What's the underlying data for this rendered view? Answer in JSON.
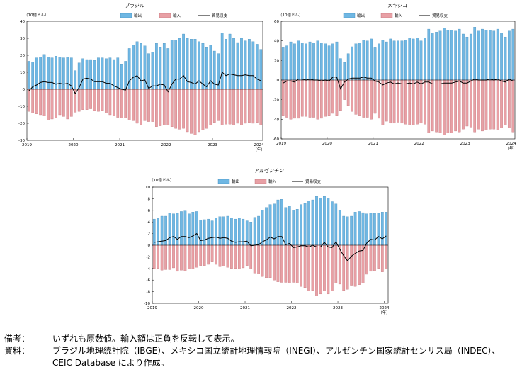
{
  "chart_data": [
    {
      "type": "bar",
      "title": "ブラジル",
      "ylabel": "（10億ドル）",
      "unit_year": "（年）",
      "ylim": [
        -30,
        40
      ],
      "yticks": [
        -30,
        -20,
        -10,
        0,
        10,
        20,
        30,
        40
      ],
      "xticks": [
        "2019",
        "2020",
        "2021",
        "2022",
        "2023",
        "2024"
      ],
      "legend": [
        "輸出",
        "輸入",
        "貿易収支"
      ],
      "series": [
        {
          "name": "輸出",
          "values": [
            16.5,
            16,
            18.5,
            19,
            20.5,
            19,
            18.5,
            19.5,
            19,
            18.5,
            19,
            18.5,
            11,
            15.5,
            18,
            17.5,
            17.5,
            17,
            18.5,
            18.5,
            18,
            18.5,
            17.5,
            18.5,
            14.5,
            16.5,
            24,
            26,
            28,
            27,
            25.5,
            21,
            22,
            27,
            24.5,
            27,
            24,
            29,
            29,
            30,
            32.5,
            30,
            29.5,
            29.5,
            28,
            27,
            24.5,
            26,
            22.5,
            21,
            33,
            29.5,
            32.5,
            30,
            27.5,
            30,
            28.5,
            29.5,
            28,
            26.5,
            23.5
          ]
        },
        {
          "name": "輸入",
          "values": [
            -13,
            -14,
            -14.5,
            -15,
            -15.5,
            -18,
            -17.5,
            -17,
            -15,
            -16,
            -17.5,
            -16,
            -13.5,
            -13,
            -12,
            -12,
            -11.5,
            -12.5,
            -13,
            -12.5,
            -14,
            -15,
            -15.5,
            -16.5,
            -17,
            -17,
            -18,
            -18.5,
            -20,
            -21,
            -18.5,
            -19,
            -19,
            -22,
            -21.5,
            -21,
            -21,
            -22,
            -23,
            -23.5,
            -23,
            -25,
            -26,
            -27,
            -25,
            -24,
            -23,
            -21,
            -19.5,
            -18.5,
            -21,
            -20.5,
            -20.5,
            -21,
            -20,
            -21,
            -20,
            -19.5,
            -20,
            -19.5,
            -21
          ]
        },
        {
          "name": "貿易収支",
          "values": [
            -1,
            1.5,
            2.5,
            4,
            4.5,
            4,
            4,
            3,
            3.5,
            3,
            3.5,
            2,
            -2.5,
            1,
            6,
            6.5,
            6,
            4.5,
            4.5,
            4.5,
            3.5,
            3.5,
            2,
            1,
            0,
            -0.5,
            5,
            7,
            8,
            5,
            5.5,
            0.5,
            2,
            2,
            3,
            2.5,
            -1.5,
            3,
            6,
            6,
            8,
            4.5,
            4,
            3,
            5,
            3,
            1.5,
            5,
            3,
            2.5,
            10,
            8,
            9,
            8.5,
            8,
            8,
            8.5,
            8,
            8,
            6,
            5
          ]
        }
      ]
    },
    {
      "type": "bar",
      "title": "メキシコ",
      "ylabel": "（10億ドル）",
      "unit_year": "（年）",
      "ylim": [
        -60,
        60
      ],
      "yticks": [
        -60,
        -40,
        -20,
        0,
        20,
        40,
        60
      ],
      "xticks": [
        "2019",
        "2020",
        "2021",
        "2022",
        "2023",
        "2024"
      ],
      "legend": [
        "輸出",
        "輸入",
        "貿易収支"
      ],
      "series": [
        {
          "name": "輸出",
          "values": [
            33,
            35,
            39,
            37,
            40,
            38,
            37,
            39,
            38,
            40,
            38,
            37,
            35,
            37,
            39,
            22,
            18,
            27,
            34,
            37,
            38,
            41,
            40,
            42,
            33,
            37,
            41,
            39,
            42,
            40,
            40,
            40,
            41,
            43,
            42,
            43,
            40,
            43,
            52,
            48,
            49,
            50,
            53,
            51,
            51,
            50,
            52,
            47,
            44,
            47,
            54,
            50,
            52,
            51,
            51,
            50,
            52,
            48,
            44,
            50,
            52
          ]
        },
        {
          "name": "輸入",
          "values": [
            -36,
            -38,
            -40,
            -39,
            -39,
            -37,
            -37,
            -38,
            -38,
            -40,
            -39,
            -37,
            -36,
            -34,
            -36,
            -31,
            -20,
            -26,
            -32,
            -35,
            -36,
            -38,
            -38,
            -40,
            -34,
            -39,
            -46,
            -42,
            -44,
            -44,
            -43,
            -44,
            -45,
            -46,
            -46,
            -45,
            -44,
            -45,
            -54,
            -52,
            -53,
            -54,
            -56,
            -54,
            -54,
            -52,
            -53,
            -50,
            -47,
            -48,
            -53,
            -50,
            -52,
            -51,
            -50,
            -50,
            -51,
            -49,
            -46,
            -49,
            -53
          ]
        },
        {
          "name": "貿易収支",
          "values": [
            -3,
            -1,
            -1,
            -2,
            1,
            1,
            0,
            1,
            0,
            0,
            -1,
            0,
            -1,
            3,
            3,
            -9,
            -2,
            1,
            2,
            2,
            2,
            3,
            2,
            2,
            -1,
            -2,
            -5,
            -3,
            -2,
            -4,
            -3,
            -4,
            -4,
            -3,
            -4,
            -2,
            -4,
            -2,
            -2,
            -4,
            -4,
            -4,
            -3,
            -3,
            -3,
            -2,
            -1,
            -3,
            -3,
            -1,
            1,
            0,
            0,
            0,
            1,
            0,
            1,
            -1,
            -2,
            1,
            -1
          ]
        }
      ]
    },
    {
      "type": "bar",
      "title": "アルゼンチン",
      "ylabel": "（10億ドル）",
      "unit_year": "（年）",
      "ylim": [
        -10,
        10
      ],
      "yticks": [
        -10,
        -8,
        -6,
        -4,
        -2,
        0,
        2,
        4,
        6,
        8,
        10
      ],
      "xticks": [
        "2019",
        "2020",
        "2021",
        "2022",
        "2023",
        "2024"
      ],
      "legend": [
        "輸出",
        "輸入",
        "貿易収支"
      ],
      "series": [
        {
          "name": "輸出",
          "values": [
            4.5,
            4.6,
            5,
            5,
            5.5,
            5.4,
            5.5,
            5.8,
            5.9,
            5.4,
            5.7,
            5.8,
            4.3,
            4.4,
            4.5,
            4.2,
            4.7,
            4.9,
            4.9,
            5,
            4.7,
            4.5,
            4.7,
            4.5,
            4.2,
            4,
            4.8,
            5,
            6,
            6.5,
            7,
            7.1,
            7.8,
            7.9,
            6.5,
            6.8,
            6,
            6.2,
            7,
            7.2,
            7.6,
            7.8,
            8.4,
            8.1,
            8.4,
            8.1,
            7.5,
            7.1,
            6,
            5,
            4.9,
            5,
            5.7,
            5.8,
            5.6,
            5.4,
            5.5,
            5.5,
            5.5,
            5.7,
            5.7
          ]
        },
        {
          "name": "輸入",
          "values": [
            -4,
            -4,
            -4.3,
            -4.2,
            -4.2,
            -3.9,
            -4.5,
            -4.3,
            -4.4,
            -4.1,
            -4.1,
            -3.8,
            -3.5,
            -3.5,
            -3.3,
            -2.9,
            -3.3,
            -3.7,
            -3.6,
            -3.8,
            -4,
            -4,
            -4.1,
            -3.9,
            -3.5,
            -4.1,
            -4.8,
            -4.9,
            -5.4,
            -5.6,
            -5.6,
            -6,
            -6.3,
            -6.4,
            -6.4,
            -6.5,
            -6.4,
            -6.5,
            -7.1,
            -7.3,
            -7.9,
            -7.8,
            -8.7,
            -8.4,
            -7.9,
            -8.4,
            -7.9,
            -6.5,
            -6.7,
            -7.8,
            -7.6,
            -6.9,
            -7.1,
            -6.8,
            -6.5,
            -5,
            -4.5,
            -4.4,
            -4,
            -4.6,
            -4.1
          ]
        },
        {
          "name": "貿易収支",
          "values": [
            0.5,
            0.6,
            0.7,
            0.8,
            1.3,
            1.5,
            1,
            1.5,
            1.5,
            1.3,
            1.6,
            2,
            0.8,
            0.9,
            1.2,
            1.3,
            1.4,
            1.2,
            1.3,
            1.2,
            0.7,
            0.5,
            0.6,
            0.6,
            0.7,
            -0.1,
            0,
            0.1,
            0.6,
            0.9,
            1.4,
            1.1,
            1.5,
            1.5,
            0.1,
            0.3,
            -0.4,
            -0.3,
            -0.1,
            -0.1,
            -0.3,
            0,
            -0.3,
            -0.3,
            0.5,
            -0.3,
            -0.4,
            0.6,
            -0.7,
            -1.8,
            -2.7,
            -1.9,
            -1.4,
            -1,
            -0.9,
            0.4,
            1,
            0.9,
            1.5,
            1.1,
            1.6
          ]
        }
      ]
    }
  ],
  "notes": [
    {
      "label": "備考：",
      "text": "いずれも原数値。輸入額は正負を反転して表示。"
    },
    {
      "label": "資料：",
      "text": "ブラジル地理統計院（IBGE）、メキシコ国立統計地理情報院（INEGI）、アルゼンチン国家統計センサス局（INDEC）、"
    },
    {
      "label": "",
      "text": "CEIC Database により作成。"
    }
  ],
  "colors": {
    "export": "#6fb7e3",
    "export_stroke": "#3d85b5",
    "import": "#e8a0a5",
    "import_stroke": "#b8676e",
    "balance": "#000000"
  }
}
